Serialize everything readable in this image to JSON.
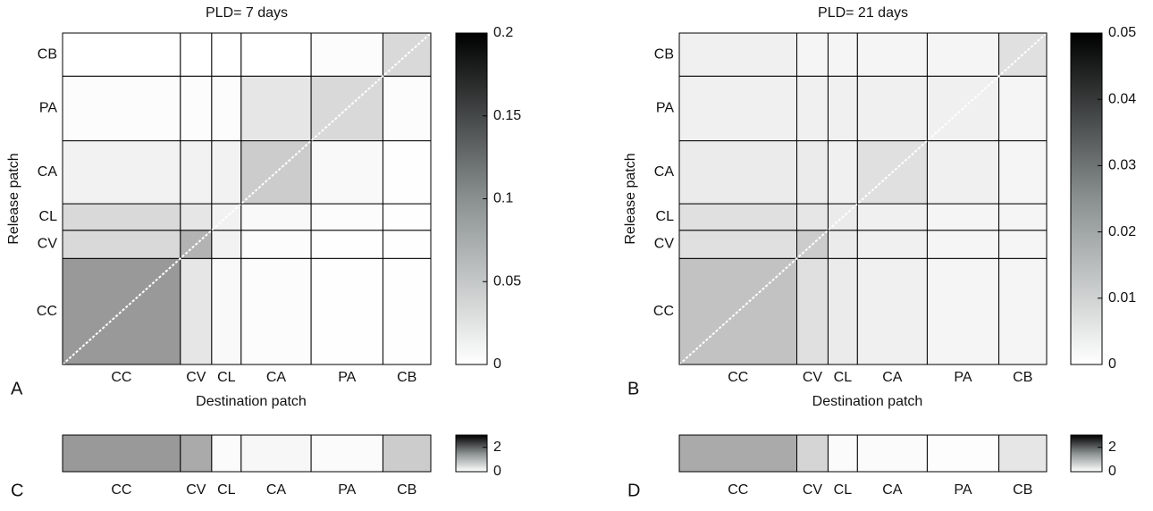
{
  "chart_data": [
    {
      "type": "heatmap",
      "panel_label": "A",
      "title": "PLD= 7 days",
      "x_label": "Destination patch",
      "y_label": "Release patch",
      "categories": [
        "CC",
        "CV",
        "CL",
        "CA",
        "PA",
        "CB"
      ],
      "values": [
        [
          0.08,
          0.02,
          0.005,
          0.002,
          0.001,
          0.001
        ],
        [
          0.03,
          0.06,
          0.01,
          0.002,
          0.001,
          0.001
        ],
        [
          0.03,
          0.02,
          0.01,
          0.005,
          0.002,
          0.001
        ],
        [
          0.01,
          0.01,
          0.01,
          0.04,
          0.005,
          0.001
        ],
        [
          0.002,
          0.002,
          0.002,
          0.02,
          0.03,
          0.002
        ],
        [
          0,
          0,
          0,
          0,
          0.002,
          0.03
        ]
      ],
      "clim": [
        0,
        0.2
      ],
      "cticks": [
        0,
        0.05,
        0.1,
        0.15,
        0.2
      ]
    },
    {
      "type": "heatmap",
      "panel_label": "B",
      "title": "PLD= 21 days",
      "x_label": "Destination patch",
      "y_label": "Release patch",
      "categories": [
        "CC",
        "CV",
        "CL",
        "CA",
        "PA",
        "CB"
      ],
      "values": [
        [
          0.012,
          0.006,
          0.004,
          0.003,
          0.002,
          0.002
        ],
        [
          0.006,
          0.01,
          0.004,
          0.003,
          0.002,
          0.002
        ],
        [
          0.006,
          0.005,
          0.004,
          0.003,
          0.002,
          0.002
        ],
        [
          0.004,
          0.004,
          0.003,
          0.006,
          0.003,
          0.002
        ],
        [
          0.003,
          0.003,
          0.003,
          0.003,
          0.003,
          0.002
        ],
        [
          0.003,
          0.002,
          0.002,
          0.002,
          0.002,
          0.006
        ]
      ],
      "clim": [
        0,
        0.05
      ],
      "cticks": [
        0,
        0.01,
        0.02,
        0.03,
        0.04,
        0.05
      ]
    },
    {
      "type": "strip",
      "panel_label": "C",
      "categories": [
        "CC",
        "CV",
        "CL",
        "CA",
        "PA",
        "CB"
      ],
      "values": [
        1.2,
        1.0,
        0.05,
        0.1,
        0.05,
        0.6
      ],
      "clim": [
        0,
        3
      ],
      "cticks": [
        0,
        2
      ]
    },
    {
      "type": "strip",
      "panel_label": "D",
      "categories": [
        "CC",
        "CV",
        "CL",
        "CA",
        "PA",
        "CB"
      ],
      "values": [
        1.0,
        0.5,
        0.05,
        0.05,
        0.02,
        0.3
      ],
      "clim": [
        0,
        3
      ],
      "cticks": [
        0,
        2
      ]
    }
  ]
}
